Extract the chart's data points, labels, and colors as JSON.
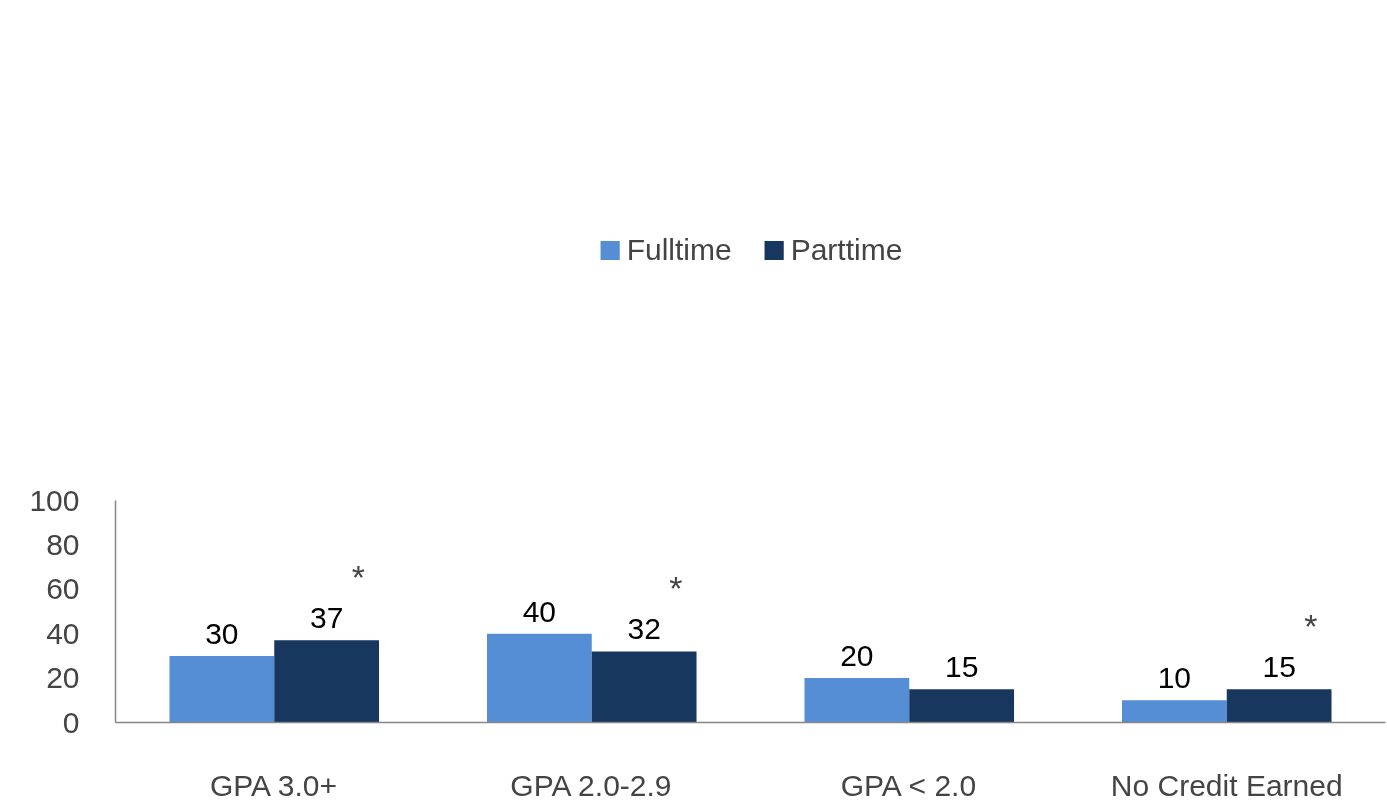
{
  "chart_data": {
    "type": "bar",
    "categories": [
      "GPA 3.0+",
      "GPA 2.0-2.9",
      "GPA < 2.0",
      "No Credit Earned"
    ],
    "series": [
      {
        "name": "Fulltime",
        "color": "#558ed5",
        "values": [
          30,
          40,
          20,
          10
        ]
      },
      {
        "name": "Parttime",
        "color": "#17375e",
        "values": [
          37,
          32,
          15,
          15
        ]
      }
    ],
    "ylim": [
      0,
      100
    ],
    "yticks": [
      0,
      20,
      40,
      60,
      80,
      100
    ],
    "grid": false,
    "legend": "top",
    "data_labels": true,
    "annotations": [
      {
        "text": "*",
        "x": "GPA 3.0+",
        "y": 37
      },
      {
        "text": "*",
        "x": "GPA 2.0-2.9",
        "y": 32
      },
      {
        "text": "*",
        "x": "No Credit Earned",
        "y": 15
      }
    ]
  }
}
